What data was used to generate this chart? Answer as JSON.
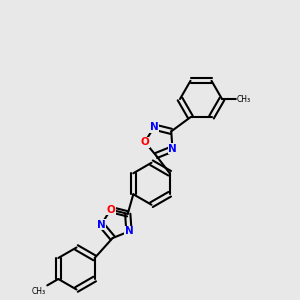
{
  "bg": "#e8e8e8",
  "bc": "#000000",
  "nc": "#0000ff",
  "oc": "#ff0000",
  "lw": 1.5,
  "dbo": 0.035,
  "figsize": [
    3.0,
    3.0
  ],
  "dpi": 100,
  "xlim": [
    -0.5,
    3.5
  ],
  "ylim": [
    -0.5,
    3.5
  ]
}
